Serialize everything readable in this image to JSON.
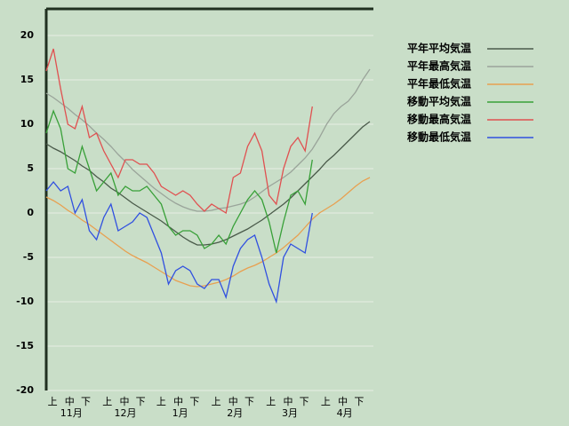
{
  "chart_data": {
    "type": "line",
    "x": [
      0,
      4,
      8,
      12,
      16,
      20,
      24,
      28,
      32,
      36,
      40,
      44,
      48,
      52,
      56,
      60,
      64,
      68,
      72,
      76,
      80,
      84,
      88,
      92,
      96,
      100,
      104,
      108,
      112,
      116,
      120,
      124,
      128,
      132,
      136,
      140,
      144,
      148,
      152,
      156,
      160,
      164,
      168,
      172,
      176,
      180
    ],
    "xlim": [
      0,
      182
    ],
    "ylim": [
      -20,
      23
    ],
    "yticks": [
      -20,
      -15,
      -10,
      -5,
      0,
      5,
      10,
      15,
      20
    ],
    "grid": true,
    "xticks": [
      {
        "value": 3.5,
        "label": "上"
      },
      {
        "value": 13,
        "label": "中"
      },
      {
        "value": 22,
        "label": "下"
      },
      {
        "value": 34,
        "label": "上"
      },
      {
        "value": 43.5,
        "label": "中"
      },
      {
        "value": 52.5,
        "label": "下"
      },
      {
        "value": 64,
        "label": "上"
      },
      {
        "value": 73.5,
        "label": "中"
      },
      {
        "value": 82.5,
        "label": "下"
      },
      {
        "value": 94.5,
        "label": "上"
      },
      {
        "value": 104,
        "label": "中"
      },
      {
        "value": 113,
        "label": "下"
      },
      {
        "value": 125,
        "label": "上"
      },
      {
        "value": 134.5,
        "label": "中"
      },
      {
        "value": 143.5,
        "label": "下"
      },
      {
        "value": 155.5,
        "label": "上"
      },
      {
        "value": 165,
        "label": "中"
      },
      {
        "value": 174,
        "label": "下"
      }
    ],
    "month_labels": [
      {
        "value": 14,
        "label": "11月"
      },
      {
        "value": 44,
        "label": "12月"
      },
      {
        "value": 74.5,
        "label": "1月"
      },
      {
        "value": 105,
        "label": "2月"
      },
      {
        "value": 135.5,
        "label": "3月"
      },
      {
        "value": 166,
        "label": "4月"
      }
    ],
    "series": [
      {
        "name": "平年平均気温",
        "color": "#4a5a4a",
        "values": [
          7.8,
          7.3,
          6.9,
          6.4,
          5.9,
          5.3,
          4.8,
          4.1,
          3.5,
          2.8,
          2.3,
          1.7,
          1.1,
          0.6,
          0.1,
          -0.4,
          -0.9,
          -1.5,
          -2.1,
          -2.7,
          -3.2,
          -3.6,
          -3.6,
          -3.5,
          -3.3,
          -3.0,
          -2.6,
          -2.2,
          -1.8,
          -1.3,
          -0.8,
          -0.2,
          0.4,
          1.0,
          1.7,
          2.5,
          3.3,
          4.1,
          4.9,
          5.8,
          6.5,
          7.3,
          8.1,
          8.9,
          9.7,
          10.3
        ]
      },
      {
        "name": "平年最高気温",
        "color": "#9aa49a",
        "values": [
          13.5,
          13.0,
          12.4,
          11.8,
          11.1,
          10.5,
          9.8,
          9.0,
          8.3,
          7.5,
          6.6,
          5.8,
          4.9,
          4.2,
          3.5,
          2.8,
          2.2,
          1.6,
          1.1,
          0.7,
          0.4,
          0.2,
          0.2,
          0.3,
          0.5,
          0.6,
          0.8,
          1.0,
          1.3,
          1.8,
          2.4,
          3.0,
          3.5,
          4.0,
          4.6,
          5.4,
          6.2,
          7.2,
          8.5,
          10.0,
          11.2,
          12.0,
          12.6,
          13.6,
          15.0,
          16.2
        ]
      },
      {
        "name": "平年最低気温",
        "color": "#e8a050",
        "values": [
          1.8,
          1.4,
          0.9,
          0.3,
          -0.2,
          -0.8,
          -1.3,
          -1.9,
          -2.5,
          -3.1,
          -3.7,
          -4.3,
          -4.8,
          -5.2,
          -5.6,
          -6.1,
          -6.6,
          -7.1,
          -7.6,
          -7.9,
          -8.2,
          -8.3,
          -8.2,
          -8.0,
          -7.8,
          -7.5,
          -7.1,
          -6.6,
          -6.2,
          -5.9,
          -5.5,
          -5.0,
          -4.5,
          -3.9,
          -3.2,
          -2.5,
          -1.6,
          -0.7,
          0.0,
          0.5,
          1.0,
          1.6,
          2.3,
          3.0,
          3.6,
          4.0
        ]
      },
      {
        "name": "移動平均気温",
        "color": "#38a038",
        "values": [
          9,
          11.5,
          9.5,
          5,
          4.5,
          7.5,
          5,
          2.5,
          3.5,
          4.5,
          2,
          3,
          2.5,
          2.5,
          3,
          2,
          1,
          -1.5,
          -2.5,
          -2,
          -2,
          -2.5,
          -4,
          -3.5,
          -2.5,
          -3.5,
          -1.5,
          0,
          1.5,
          2.5,
          1.5,
          -1,
          -4.5,
          -1,
          2,
          2.5,
          1,
          6,
          null,
          null,
          null,
          null,
          null,
          null,
          null,
          null
        ]
      },
      {
        "name": "移動最高気温",
        "color": "#e05050",
        "values": [
          16,
          18.5,
          14,
          10,
          9.5,
          12,
          8.5,
          9,
          7,
          5.5,
          4,
          6,
          6,
          5.5,
          5.5,
          4.5,
          3,
          2.5,
          2,
          2.5,
          2,
          1,
          0.2,
          1,
          0.5,
          0,
          4,
          4.5,
          7.5,
          9,
          7,
          2,
          1,
          5,
          7.5,
          8.5,
          7,
          12,
          null,
          null,
          null,
          null,
          null,
          null,
          null,
          null
        ]
      },
      {
        "name": "移動最低気温",
        "color": "#3050e0",
        "values": [
          2.5,
          3.5,
          2.5,
          3,
          0,
          1.5,
          -2,
          -3,
          -0.5,
          1,
          -2,
          -1.5,
          -1,
          0,
          -0.5,
          -2.5,
          -4.5,
          -8,
          -6.5,
          -6,
          -6.5,
          -8,
          -8.5,
          -7.5,
          -7.5,
          -9.5,
          -6,
          -4,
          -3,
          -2.5,
          -5,
          -8,
          -10,
          -5,
          -3.5,
          -4,
          -4.5,
          0,
          null,
          null,
          null,
          null,
          null,
          null,
          null,
          null
        ]
      }
    ]
  }
}
